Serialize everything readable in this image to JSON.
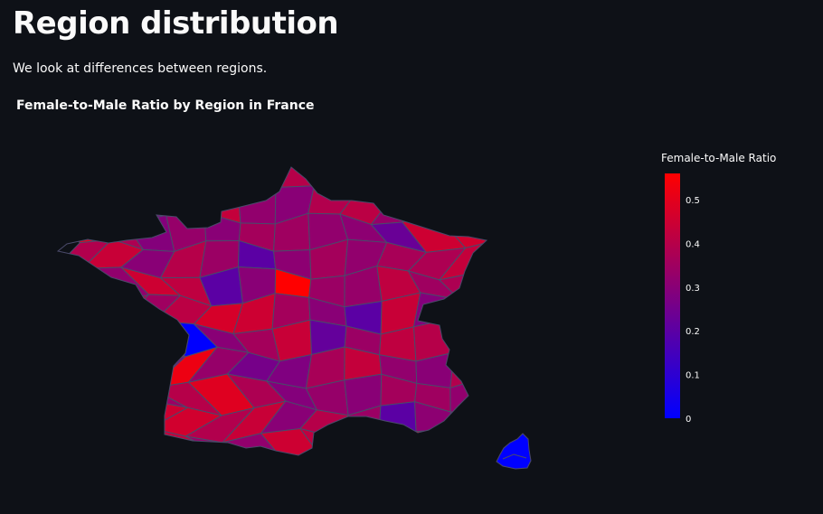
{
  "page": {
    "title": "Region distribution",
    "subtitle": "We look at differences between regions."
  },
  "colors": {
    "background": "#0e1117",
    "text": "#fafafa",
    "scale_low": "#0000ff",
    "scale_high": "#ff0000",
    "border": "#4a4a6a"
  },
  "chart_data": {
    "type": "heatmap",
    "title": "Female-to-Male Ratio by Region in France",
    "colorbar": {
      "title": "Female-to-Male Ratio",
      "range": [
        0,
        0.56
      ],
      "ticks": [
        0,
        0.1,
        0.2,
        0.3,
        0.4,
        0.5
      ],
      "tick_labels": [
        "0",
        "0.1",
        "0.2",
        "0.3",
        "0.4",
        "0.5"
      ],
      "placement": "right"
    },
    "regions": [
      {
        "id": "d01",
        "value": 0.3
      },
      {
        "id": "d02",
        "value": 0.36
      },
      {
        "id": "d03",
        "value": 0.44
      },
      {
        "id": "d04",
        "value": 0.22
      },
      {
        "id": "d05",
        "value": 0.34
      },
      {
        "id": "d06",
        "value": 0.42
      },
      {
        "id": "d07",
        "value": 0.4
      },
      {
        "id": "d08",
        "value": 0.47
      },
      {
        "id": "d09",
        "value": 0.31
      },
      {
        "id": "d10",
        "value": 0.38
      },
      {
        "id": "d11",
        "value": 0.27
      },
      {
        "id": "d12",
        "value": 0.52
      },
      {
        "id": "d13",
        "value": 0.33
      },
      {
        "id": "d14",
        "value": 0.26
      },
      {
        "id": "d15",
        "value": 0.28
      },
      {
        "id": "d16",
        "value": 0.37
      },
      {
        "id": "d17",
        "value": 0.43
      },
      {
        "id": "d18",
        "value": 0.32
      },
      {
        "id": "d19",
        "value": 0.3
      },
      {
        "id": "d20",
        "value": 0.39
      },
      {
        "id": "d21",
        "value": 0.41
      },
      {
        "id": "d22",
        "value": 0.33
      },
      {
        "id": "d23",
        "value": 0.34
      },
      {
        "id": "d24",
        "value": 0.4
      },
      {
        "id": "d25",
        "value": 0.49
      },
      {
        "id": "d26",
        "value": 0.38
      },
      {
        "id": "d27",
        "value": 0.29
      },
      {
        "id": "d28",
        "value": 0.33
      },
      {
        "id": "d29",
        "value": 0.3
      },
      {
        "id": "d30",
        "value": 0.36
      },
      {
        "id": "d31",
        "value": 0.35
      },
      {
        "id": "d32",
        "value": 0.32
      },
      {
        "id": "d33",
        "value": 0.31
      },
      {
        "id": "d34",
        "value": 0.23
      },
      {
        "id": "d35",
        "value": 0.45
      },
      {
        "id": "d36",
        "value": 0.46
      },
      {
        "id": "d37",
        "value": 0.39
      },
      {
        "id": "d38",
        "value": 0.44
      },
      {
        "id": "d39",
        "value": 0.3
      },
      {
        "id": "d40",
        "value": 0.4
      },
      {
        "id": "d41",
        "value": 0.34
      },
      {
        "id": "d42",
        "value": 0.2
      },
      {
        "id": "d43",
        "value": 0.31
      },
      {
        "id": "d44",
        "value": 0.36
      },
      {
        "id": "d45",
        "value": 0.32
      },
      {
        "id": "d46",
        "value": 0.37
      },
      {
        "id": "d47",
        "value": 0.38
      },
      {
        "id": "d48",
        "value": 0.43
      },
      {
        "id": "d49",
        "value": 0.33
      },
      {
        "id": "d50",
        "value": 0.32
      },
      {
        "id": "d51",
        "value": 0.45
      },
      {
        "id": "d52",
        "value": 0.42
      },
      {
        "id": "d53",
        "value": 0.2
      },
      {
        "id": "d54",
        "value": 0.3
      },
      {
        "id": "d55",
        "value": 0.56
      },
      {
        "id": "d56",
        "value": 0.34
      },
      {
        "id": "d57",
        "value": 0.33
      },
      {
        "id": "d58",
        "value": 0.42
      },
      {
        "id": "d59",
        "value": 0.35
      },
      {
        "id": "d60",
        "value": 0.38
      },
      {
        "id": "d61",
        "value": 0.2
      },
      {
        "id": "d62",
        "value": 0.4
      },
      {
        "id": "d63",
        "value": 0.35
      },
      {
        "id": "d64",
        "value": 0.41
      },
      {
        "id": "d65",
        "value": 0.47
      },
      {
        "id": "d66",
        "value": 0.45
      },
      {
        "id": "d67",
        "value": 0.36
      },
      {
        "id": "d68",
        "value": 0.3
      },
      {
        "id": "d69",
        "value": 0.2
      },
      {
        "id": "d70",
        "value": 0.44
      },
      {
        "id": "d71",
        "value": 0.29
      },
      {
        "id": "d72",
        "value": 0.36
      },
      {
        "id": "d73",
        "value": 0.22
      },
      {
        "id": "d74",
        "value": 0.48
      },
      {
        "id": "d75",
        "value": 0.4
      },
      {
        "id": "d76",
        "value": 0.0
      }
    ]
  }
}
